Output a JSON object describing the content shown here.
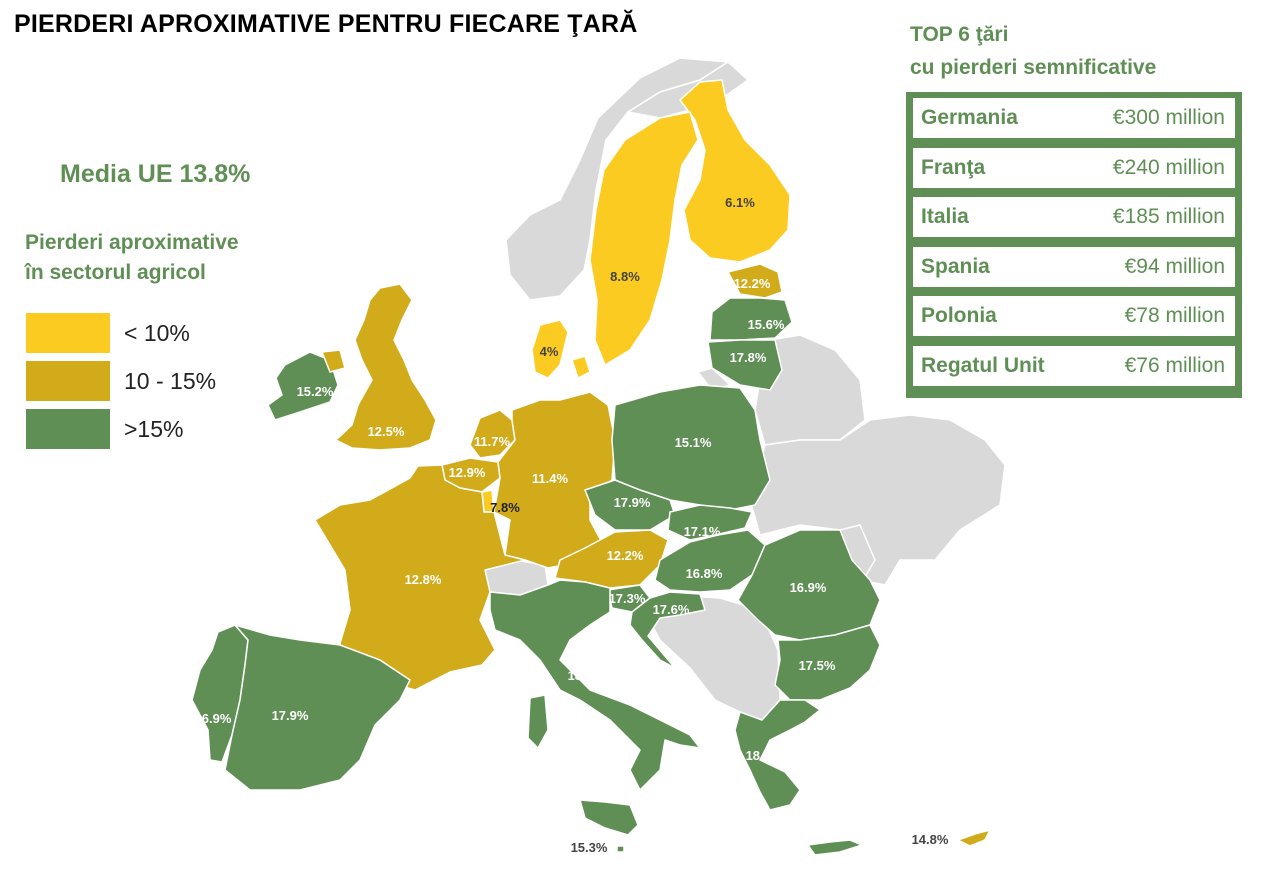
{
  "title": "PIERDERI APROXIMATIVE PENTRU FIECARE ŢARĂ",
  "eu_average": "Media UE 13.8%",
  "legend": {
    "title_line1": "Pierderi aproximative",
    "title_line2": "în sectorul agricol",
    "items": [
      {
        "label": "< 10%",
        "color": "#fbcb21"
      },
      {
        "label": "10 - 15%",
        "color": "#d2ab1b"
      },
      {
        "label": ">15%",
        "color": "#5f8f55"
      }
    ]
  },
  "top6": {
    "title_line1": "TOP 6 ţări",
    "title_line2": "cu pierderi semnificative",
    "rows": [
      {
        "country": "Germania",
        "value": "€300 million"
      },
      {
        "country": "Franţa",
        "value": "€240 million"
      },
      {
        "country": "Italia",
        "value": "€185 million"
      },
      {
        "country": "Spania",
        "value": "€94 million"
      },
      {
        "country": "Polonia",
        "value": "€78 million"
      },
      {
        "country": "Regatul Unit",
        "value": "€76 million"
      }
    ]
  },
  "colors": {
    "under10": "#fbcb21",
    "mid": "#d2ab1b",
    "over15": "#5f8f55",
    "non_eu": "#d9d9d9"
  },
  "map_labels": {
    "finland": "6.1%",
    "sweden": "8.8%",
    "estonia": "12.2%",
    "latvia": "15.6%",
    "lithuania": "17.8%",
    "denmark": "4%",
    "ireland": "15.2%",
    "uk": "12.5%",
    "netherlands": "11.7%",
    "belgium": "12.9%",
    "luxembourg": "7.8%",
    "germany": "11.4%",
    "poland": "15.1%",
    "czechia": "17.9%",
    "slovakia": "17.1%",
    "austria": "12.2%",
    "hungary": "16.8%",
    "romania": "16.9%",
    "slovenia": "17.3%",
    "croatia": "17.6%",
    "bulgaria": "17.5%",
    "france": "12.8%",
    "italy": "18.1%",
    "greece": "18.7%",
    "portugal": "16.9%",
    "spain": "17.9%",
    "malta": "15.3%",
    "cyprus": "14.8%"
  }
}
